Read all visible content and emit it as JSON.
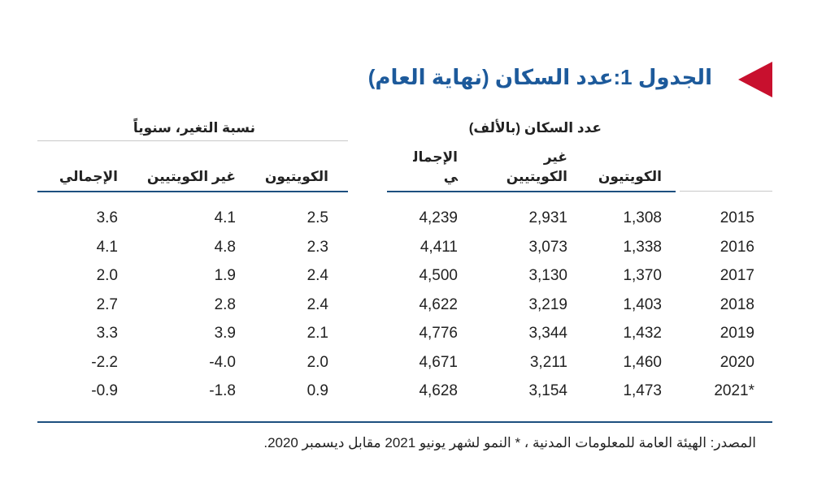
{
  "title": "الجدول 1:عدد السكان (نهاية العام)",
  "colors": {
    "title": "#1d5a9b",
    "marker": "#c8102e",
    "rule": "#1d4f7f",
    "light_rule": "#c8c8c8"
  },
  "groups": {
    "population": "عدد السكان (بالألف)",
    "growth": "نسبة التغير، سنوياً"
  },
  "columns": {
    "population": [
      "الكويتيون",
      "غير الكويتيين",
      "الإجمالي"
    ],
    "growth": [
      "الكويتيون",
      "غير الكويتيين",
      "الإجمالي"
    ]
  },
  "rows": [
    {
      "year": "2015",
      "pop": [
        "1,308",
        "2,931",
        "4,239"
      ],
      "growth": [
        "2.5",
        "4.1",
        "3.6"
      ]
    },
    {
      "year": "2016",
      "pop": [
        "1,338",
        "3,073",
        "4,411"
      ],
      "growth": [
        "2.3",
        "4.8",
        "4.1"
      ]
    },
    {
      "year": "2017",
      "pop": [
        "1,370",
        "3,130",
        "4,500"
      ],
      "growth": [
        "2.4",
        "1.9",
        "2.0"
      ]
    },
    {
      "year": "2018",
      "pop": [
        "1,403",
        "3,219",
        "4,622"
      ],
      "growth": [
        "2.4",
        "2.8",
        "2.7"
      ]
    },
    {
      "year": "2019",
      "pop": [
        "1,432",
        "3,344",
        "4,776"
      ],
      "growth": [
        "2.1",
        "3.9",
        "3.3"
      ]
    },
    {
      "year": "2020",
      "pop": [
        "1,460",
        "3,211",
        "4,671"
      ],
      "growth": [
        "2.0",
        "-4.0",
        "-2.2"
      ]
    },
    {
      "year": "2021*",
      "pop": [
        "1,473",
        "3,154",
        "4,628"
      ],
      "growth": [
        "0.9",
        "-1.8",
        "-0.9"
      ]
    }
  ],
  "source": "المصدر: الهيئة العامة للمعلومات المدنية ، * النمو لشهر يونيو 2021 مقابل ديسمبر 2020."
}
